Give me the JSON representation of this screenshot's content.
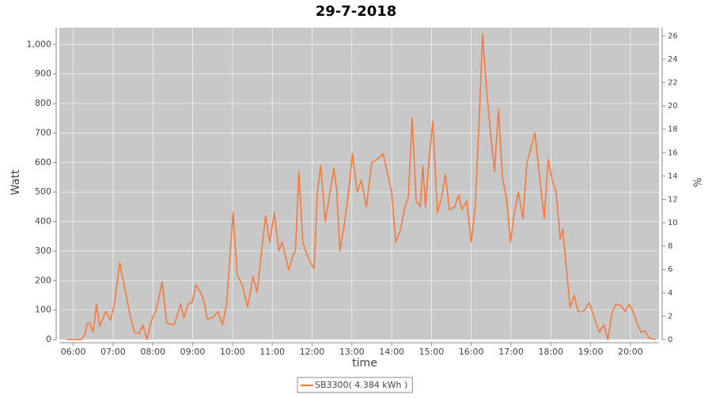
{
  "chart_data": {
    "type": "line",
    "title": "29-7-2018",
    "x_label": "time",
    "y_label": "Watt",
    "y2_label": "%",
    "x": [
      "05:50",
      "06:00",
      "06:12",
      "06:18",
      "06:21",
      "06:25",
      "06:30",
      "06:35",
      "06:40",
      "06:49",
      "06:56",
      "07:02",
      "07:10",
      "07:17",
      "07:26",
      "07:32",
      "07:39",
      "07:45",
      "07:51",
      "07:58",
      "08:05",
      "08:14",
      "08:21",
      "08:32",
      "08:37",
      "08:42",
      "08:47",
      "08:53",
      "08:59",
      "09:05",
      "09:12",
      "09:17",
      "09:22",
      "09:31",
      "09:38",
      "09:45",
      "09:51",
      "10:01",
      "10:07",
      "10:15",
      "10:23",
      "10:31",
      "10:37",
      "10:44",
      "10:50",
      "10:56",
      "11:03",
      "11:10",
      "11:15",
      "11:25",
      "11:31",
      "11:35",
      "11:40",
      "11:46",
      "11:52",
      "11:58",
      "12:03",
      "12:08",
      "12:13",
      "12:20",
      "12:27",
      "12:33",
      "12:37",
      "12:42",
      "12:48",
      "12:54",
      "13:01",
      "13:08",
      "13:14",
      "13:22",
      "13:30",
      "13:38",
      "13:47",
      "13:54",
      "14:00",
      "14:06",
      "14:13",
      "14:20",
      "14:25",
      "14:31",
      "14:37",
      "14:43",
      "14:47",
      "14:51",
      "14:56",
      "15:02",
      "15:09",
      "15:15",
      "15:21",
      "15:27",
      "15:35",
      "15:41",
      "15:46",
      "15:53",
      "16:00",
      "16:06",
      "16:12",
      "16:17",
      "16:23",
      "16:29",
      "16:35",
      "16:41",
      "16:47",
      "16:53",
      "16:59",
      "17:05",
      "17:11",
      "17:18",
      "17:24",
      "17:30",
      "17:36",
      "17:43",
      "17:50",
      "17:56",
      "18:02",
      "18:08",
      "18:14",
      "18:18",
      "18:23",
      "18:29",
      "18:35",
      "18:41",
      "18:49",
      "18:58",
      "19:06",
      "19:13",
      "19:20",
      "19:26",
      "19:32",
      "19:38",
      "19:46",
      "19:52",
      "19:58",
      "20:04",
      "20:10",
      "20:16",
      "20:22",
      "20:28",
      "20:38"
    ],
    "series": [
      {
        "name": "SB3300( 4.384 kWh )",
        "color": "#f5793a",
        "values": [
          0,
          0,
          0,
          20,
          55,
          55,
          25,
          120,
          45,
          95,
          65,
          120,
          260,
          180,
          80,
          25,
          20,
          50,
          0,
          65,
          100,
          195,
          55,
          50,
          85,
          120,
          75,
          120,
          125,
          185,
          160,
          130,
          70,
          75,
          95,
          50,
          120,
          430,
          220,
          185,
          110,
          215,
          160,
          300,
          420,
          330,
          430,
          300,
          330,
          235,
          285,
          300,
          570,
          330,
          290,
          260,
          240,
          500,
          590,
          400,
          500,
          580,
          510,
          300,
          380,
          480,
          630,
          500,
          540,
          450,
          600,
          610,
          630,
          560,
          500,
          330,
          370,
          450,
          480,
          750,
          470,
          450,
          590,
          450,
          600,
          740,
          430,
          480,
          560,
          440,
          450,
          490,
          440,
          470,
          330,
          450,
          750,
          1035,
          850,
          700,
          570,
          780,
          550,
          480,
          330,
          430,
          500,
          410,
          600,
          650,
          700,
          550,
          410,
          610,
          540,
          500,
          340,
          375,
          250,
          110,
          150,
          95,
          95,
          125,
          70,
          25,
          50,
          0,
          90,
          120,
          115,
          95,
          120,
          95,
          55,
          25,
          30,
          5,
          0
        ]
      }
    ],
    "xlim": [
      "05:39",
      "20:43"
    ],
    "xticks": [
      "06:00",
      "07:00",
      "08:00",
      "09:00",
      "10:00",
      "11:00",
      "12:00",
      "13:00",
      "14:00",
      "15:00",
      "16:00",
      "17:00",
      "18:00",
      "19:00",
      "20:00"
    ],
    "ylim": [
      0,
      1057
    ],
    "yticks": [
      0,
      100,
      200,
      300,
      400,
      500,
      600,
      700,
      800,
      900,
      {
        "value": 1000,
        "label": "1,000"
      }
    ],
    "y2lim": [
      0,
      26.7
    ],
    "y2ticks": [
      0,
      2,
      4,
      6,
      8,
      10,
      12,
      14,
      16,
      18,
      20,
      22,
      24,
      26
    ],
    "grid": true
  }
}
